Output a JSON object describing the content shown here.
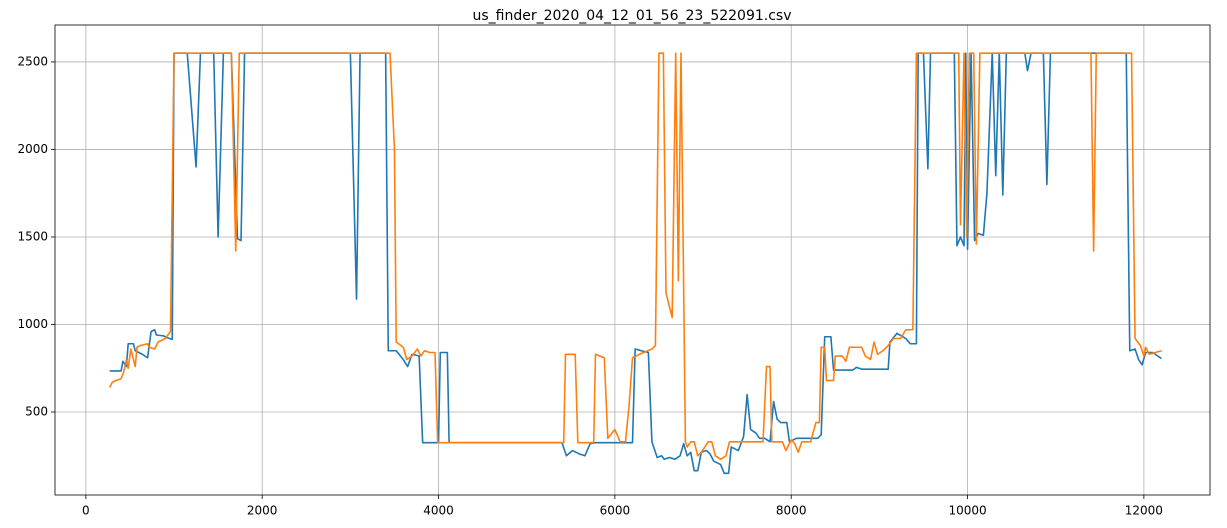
{
  "chart_data": {
    "type": "line",
    "title": "us_finder_2020_04_12_01_56_23_522091.csv",
    "xlim": [
      -350,
      12750
    ],
    "ylim": [
      26,
      2711
    ],
    "xticks": [
      0,
      2000,
      4000,
      6000,
      8000,
      10000,
      12000
    ],
    "yticks": [
      500,
      1000,
      1500,
      2000,
      2500
    ],
    "grid": true,
    "series": [
      {
        "color": "#1f77b4",
        "x": [
          270,
          400,
          420,
          460,
          480,
          540,
          560,
          640,
          700,
          740,
          780,
          800,
          880,
          920,
          980,
          1000,
          1150,
          1250,
          1300,
          1450,
          1500,
          1560,
          1650,
          1720,
          1760,
          1800,
          3000,
          3070,
          3110,
          3400,
          3430,
          3520,
          3600,
          3650,
          3700,
          3780,
          3820,
          4000,
          4020,
          4100,
          4120,
          5400,
          5450,
          5520,
          5600,
          5660,
          5720,
          5780,
          6200,
          6230,
          6300,
          6380,
          6420,
          6480,
          6530,
          6560,
          6620,
          6680,
          6740,
          6780,
          6820,
          6860,
          6900,
          6940,
          6980,
          7040,
          7080,
          7120,
          7200,
          7240,
          7290,
          7320,
          7400,
          7460,
          7500,
          7540,
          7600,
          7640,
          7700,
          7760,
          7800,
          7840,
          7880,
          7950,
          7980,
          8060,
          8300,
          8340,
          8380,
          8450,
          8480,
          8700,
          8740,
          8800,
          9100,
          9120,
          9200,
          9300,
          9350,
          9420,
          9440,
          9500,
          9550,
          9580,
          9850,
          9880,
          9920,
          9960,
          9980,
          10000,
          10040,
          10080,
          10120,
          10180,
          10220,
          10280,
          10320,
          10360,
          10400,
          10440,
          10650,
          10680,
          10720,
          10860,
          10900,
          10940,
          11800,
          11840,
          11900,
          11940,
          11980,
          12020,
          12100,
          12200
        ],
        "values": [
          735,
          735,
          790,
          760,
          890,
          890,
          850,
          830,
          810,
          960,
          970,
          940,
          935,
          925,
          915,
          2550,
          2550,
          1900,
          2550,
          2550,
          1500,
          2550,
          2550,
          1490,
          1480,
          2550,
          2550,
          1145,
          2550,
          2550,
          850,
          850,
          800,
          760,
          830,
          820,
          325,
          325,
          840,
          840,
          325,
          325,
          250,
          280,
          260,
          250,
          320,
          325,
          325,
          860,
          850,
          840,
          330,
          240,
          250,
          230,
          240,
          230,
          250,
          320,
          250,
          270,
          165,
          165,
          270,
          280,
          260,
          220,
          200,
          150,
          150,
          300,
          280,
          360,
          600,
          400,
          380,
          350,
          350,
          330,
          560,
          460,
          440,
          440,
          330,
          350,
          350,
          370,
          930,
          930,
          740,
          740,
          755,
          745,
          745,
          900,
          950,
          920,
          890,
          890,
          2550,
          2550,
          1890,
          2550,
          2550,
          1450,
          1500,
          1450,
          2550,
          1430,
          2550,
          1480,
          1520,
          1510,
          1750,
          2550,
          1850,
          2550,
          1740,
          2550,
          2550,
          2450,
          2550,
          2550,
          1800,
          2550,
          2550,
          850,
          860,
          800,
          770,
          840,
          840,
          805
        ]
      },
      {
        "color": "#ff7f0e",
        "x": [
          270,
          300,
          340,
          400,
          430,
          460,
          480,
          510,
          560,
          580,
          620,
          700,
          720,
          780,
          820,
          900,
          960,
          1000,
          1650,
          1700,
          1740,
          3450,
          3500,
          3520,
          3600,
          3640,
          3700,
          3760,
          3800,
          3840,
          3900,
          3960,
          3990,
          5420,
          5440,
          5550,
          5580,
          5760,
          5780,
          5880,
          5920,
          6000,
          6060,
          6120,
          6160,
          6200,
          6280,
          6420,
          6460,
          6500,
          6550,
          6580,
          6650,
          6690,
          6720,
          6750,
          6800,
          6820,
          6860,
          6900,
          6940,
          6980,
          7060,
          7100,
          7140,
          7200,
          7260,
          7300,
          7680,
          7720,
          7760,
          7780,
          7900,
          7940,
          8000,
          8040,
          8080,
          8120,
          8220,
          8280,
          8320,
          8340,
          8380,
          8400,
          8480,
          8500,
          8580,
          8620,
          8660,
          8800,
          8840,
          8900,
          8940,
          8980,
          9040,
          9100,
          9160,
          9240,
          9300,
          9380,
          9420,
          9900,
          9920,
          9960,
          9990,
          10020,
          10070,
          10100,
          10140,
          11400,
          11430,
          11460,
          11860,
          11900,
          11960,
          12000,
          12020,
          12060,
          12200
        ],
        "values": [
          640,
          670,
          680,
          690,
          730,
          800,
          750,
          860,
          760,
          870,
          880,
          890,
          870,
          860,
          900,
          920,
          960,
          2550,
          2550,
          1420,
          2550,
          2550,
          2000,
          900,
          870,
          800,
          820,
          860,
          820,
          850,
          840,
          840,
          325,
          325,
          830,
          830,
          325,
          325,
          830,
          810,
          350,
          400,
          330,
          330,
          530,
          810,
          830,
          860,
          880,
          2550,
          2550,
          1180,
          1040,
          2550,
          1250,
          2550,
          330,
          300,
          330,
          330,
          250,
          270,
          330,
          330,
          250,
          230,
          250,
          330,
          330,
          760,
          760,
          330,
          330,
          280,
          340,
          320,
          270,
          330,
          330,
          440,
          440,
          870,
          870,
          680,
          680,
          820,
          820,
          790,
          870,
          870,
          820,
          800,
          900,
          830,
          850,
          880,
          920,
          920,
          970,
          970,
          2550,
          2550,
          1570,
          2550,
          1500,
          2550,
          2550,
          1460,
          2550,
          2550,
          1420,
          2550,
          2550,
          920,
          880,
          820,
          870,
          830,
          850
        ]
      }
    ]
  }
}
